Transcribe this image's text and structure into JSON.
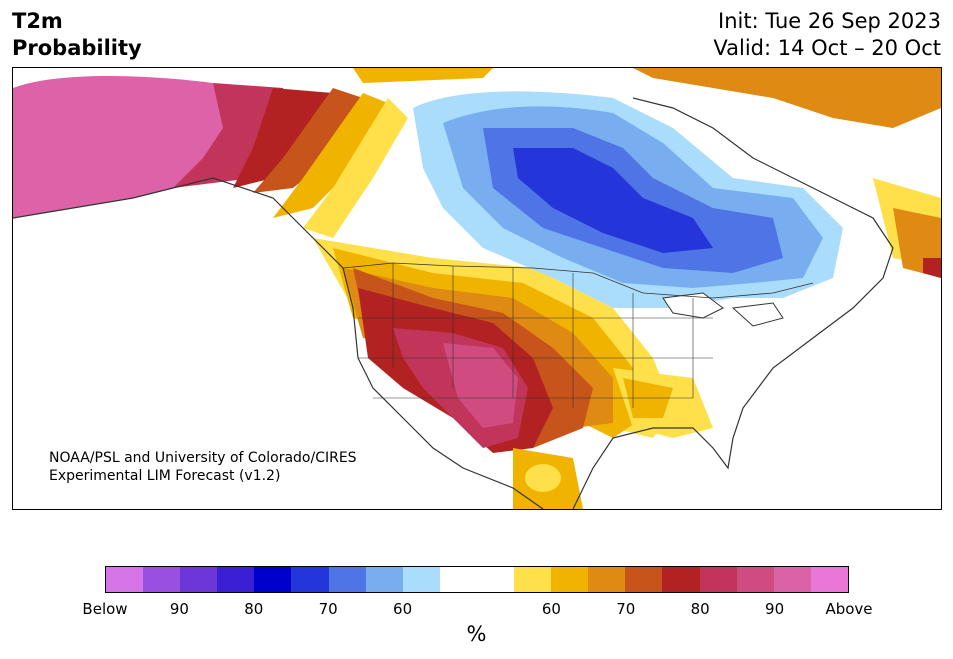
{
  "header": {
    "title_line1": "T2m",
    "title_line2": "Probability",
    "init": "Init: Tue 26 Sep 2023",
    "valid": "Valid: 14 Oct – 20 Oct"
  },
  "credit": {
    "line1": "NOAA/PSL and University of Colorado/CIRES",
    "line2": "Experimental LIM Forecast (v1.2)"
  },
  "colorbar": {
    "colors": [
      "#d675e8",
      "#9b4fe0",
      "#6c36d8",
      "#3a1fd4",
      "#0000cc",
      "#2436d9",
      "#4e74e6",
      "#78aef0",
      "#aadcfb",
      "#ffffff",
      "#ffffff",
      "#ffe04a",
      "#f0b400",
      "#df8a12",
      "#c7541a",
      "#b22222",
      "#c2355a",
      "#d04c80",
      "#dc62a8",
      "#e877d8"
    ],
    "labels": [
      "Below",
      "90",
      "80",
      "70",
      "60",
      "60",
      "70",
      "80",
      "90",
      "Above"
    ],
    "unit": "%"
  },
  "map_colors": {
    "ocean": "#ffffff",
    "land": "#ffffff",
    "coast": "#333333"
  }
}
